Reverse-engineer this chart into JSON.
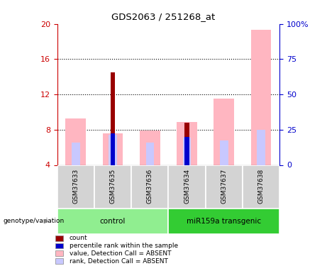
{
  "title": "GDS2063 / 251268_at",
  "samples": [
    "GSM37633",
    "GSM37635",
    "GSM37636",
    "GSM37634",
    "GSM37637",
    "GSM37638"
  ],
  "ylim_left": [
    4,
    20
  ],
  "ylim_right": [
    0,
    100
  ],
  "yticks_left": [
    4,
    8,
    12,
    16,
    20
  ],
  "yticks_right": [
    0,
    25,
    50,
    75,
    100
  ],
  "yticklabels_right": [
    "0",
    "25",
    "50",
    "75",
    "100%"
  ],
  "value_pink": [
    9.3,
    7.6,
    7.9,
    8.9,
    11.5,
    19.3
  ],
  "rank_lavender": [
    6.5,
    7.4,
    6.5,
    7.1,
    6.8,
    8.0
  ],
  "count_red": [
    4.0,
    14.5,
    4.0,
    8.8,
    4.0,
    4.0
  ],
  "percentile_blue": [
    4.0,
    7.6,
    4.0,
    7.2,
    4.0,
    4.0
  ],
  "bar_bottom": 4.0,
  "color_pink": "#FFB6C1",
  "color_lavender": "#C8C8FF",
  "color_red": "#990000",
  "color_blue": "#0000CC",
  "color_control_bg": "#90EE90",
  "color_transgenic_bg": "#33CC33",
  "color_sample_bg": "#D3D3D3",
  "left_axis_color": "#CC0000",
  "right_axis_color": "#0000CC",
  "legend_items": [
    {
      "label": "count",
      "color": "#990000"
    },
    {
      "label": "percentile rank within the sample",
      "color": "#0000CC"
    },
    {
      "label": "value, Detection Call = ABSENT",
      "color": "#FFB6C1"
    },
    {
      "label": "rank, Detection Call = ABSENT",
      "color": "#C8C8FF"
    }
  ]
}
